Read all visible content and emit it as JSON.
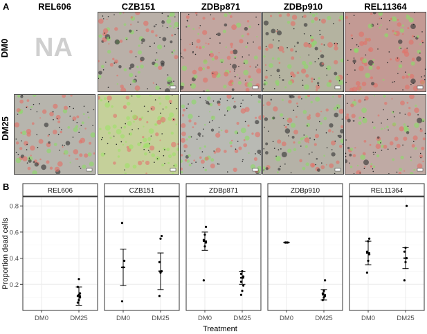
{
  "panel_a": {
    "label": "A",
    "strains": [
      "REL606",
      "CZB151",
      "ZDBp871",
      "ZDBp910",
      "REL11364"
    ],
    "rows": [
      "DM0",
      "DM25"
    ],
    "missing_text": "NA",
    "image_tones": {
      "DM0": [
        "none",
        "#b9b0a8",
        "#c2a6a0",
        "#b4b3a0",
        "#c39a94"
      ],
      "DM25": [
        "#b7b5ad",
        "#c5d09a",
        "#b9bab4",
        "#b5b2a7",
        "#bfaaa4"
      ]
    }
  },
  "panel_b": {
    "label": "B"
  },
  "chart_data": {
    "type": "scatter",
    "ylabel": "Proportion dead cells",
    "xlabel": "Treatment",
    "ylim": [
      0.0,
      0.87
    ],
    "yticks": [
      0.2,
      0.4,
      0.6,
      0.8
    ],
    "ytick_labels": [
      "0.2",
      "0.4",
      "0.6",
      "0.8"
    ],
    "categories": [
      "DM0",
      "DM25"
    ],
    "grid": true,
    "facets": [
      {
        "name": "REL606",
        "groups": [
          {
            "x": "DM0",
            "points": [],
            "mean": null,
            "sd": null
          },
          {
            "x": "DM25",
            "points": [
              0.06,
              0.08,
              0.1,
              0.11,
              0.12,
              0.13,
              0.18,
              0.24
            ],
            "mean": 0.11,
            "sd": 0.07
          }
        ]
      },
      {
        "name": "CZB151",
        "groups": [
          {
            "x": "DM0",
            "points": [
              0.07,
              0.33,
              0.38,
              0.67
            ],
            "mean": 0.33,
            "sd": 0.14
          },
          {
            "x": "DM25",
            "points": [
              0.11,
              0.29,
              0.3,
              0.37,
              0.55,
              0.57
            ],
            "mean": 0.3,
            "sd": 0.14
          }
        ]
      },
      {
        "name": "ZDBp871",
        "groups": [
          {
            "x": "DM0",
            "points": [
              0.23,
              0.49,
              0.52,
              0.54,
              0.58,
              0.64
            ],
            "mean": 0.53,
            "sd": 0.07
          },
          {
            "x": "DM25",
            "points": [
              0.12,
              0.15,
              0.19,
              0.22,
              0.25,
              0.26,
              0.28,
              0.3
            ],
            "mean": 0.25,
            "sd": 0.05
          }
        ]
      },
      {
        "name": "ZDBp910",
        "groups": [
          {
            "x": "DM0",
            "points": [
              0.52,
              0.52,
              0.52,
              0.52
            ],
            "mean": 0.52,
            "sd": 0.003
          },
          {
            "x": "DM25",
            "points": [
              0.08,
              0.1,
              0.11,
              0.13,
              0.15,
              0.23
            ],
            "mean": 0.12,
            "sd": 0.04
          }
        ]
      },
      {
        "name": "REL11364",
        "groups": [
          {
            "x": "DM0",
            "points": [
              0.29,
              0.38,
              0.43,
              0.45,
              0.53,
              0.55
            ],
            "mean": 0.44,
            "sd": 0.09
          },
          {
            "x": "DM25",
            "points": [
              0.23,
              0.37,
              0.4,
              0.45,
              0.48,
              0.8
            ],
            "mean": 0.4,
            "sd": 0.08
          }
        ]
      }
    ]
  }
}
